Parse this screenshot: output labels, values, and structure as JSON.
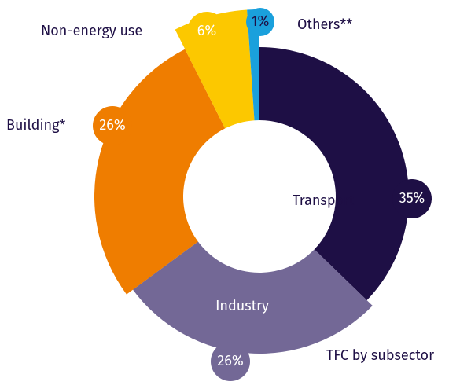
{
  "chart_data": {
    "type": "donut",
    "categories": [
      "Transport",
      "Industry",
      "Building*",
      "Non-energy use",
      "Others**"
    ],
    "values": [
      35,
      26,
      26,
      6,
      1
    ],
    "value_labels": [
      "35%",
      "26%",
      "26%",
      "6%",
      "1%"
    ],
    "colors": [
      "#1e0f45",
      "#736896",
      "#ef7d00",
      "#fcc800",
      "#1aa0dc"
    ],
    "annotation": "TFC by subsector"
  }
}
